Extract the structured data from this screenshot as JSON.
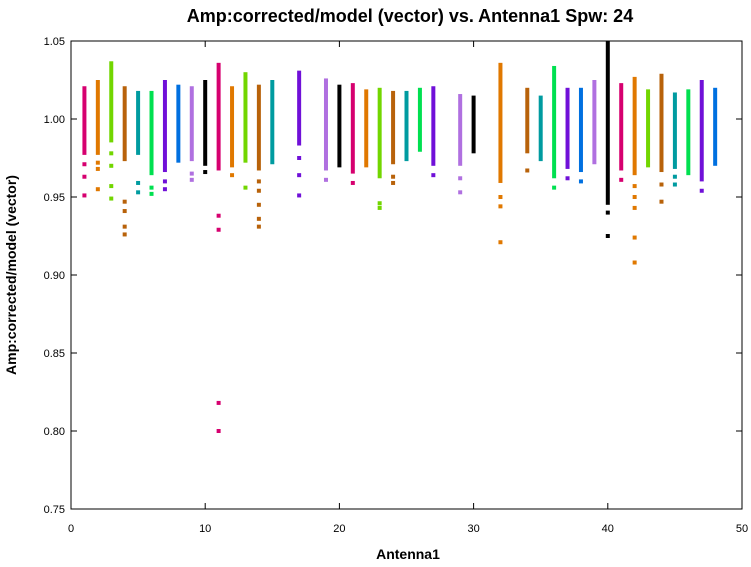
{
  "chart_data": {
    "type": "scatter",
    "title": "Amp:corrected/model (vector) vs. Antenna1 Spw: 24",
    "xlabel": "Antenna1",
    "ylabel": "Amp:corrected/model (vector)",
    "xlim": [
      0,
      50
    ],
    "ylim": [
      0.75,
      1.05
    ],
    "x_ticks": [
      0,
      10,
      20,
      30,
      40,
      50
    ],
    "x_tick_labels": [
      "0",
      "10",
      "20",
      "30",
      "40",
      "50"
    ],
    "y_ticks": [
      0.75,
      0.8,
      0.85,
      0.9,
      0.95,
      1.0,
      1.05
    ],
    "y_tick_labels": [
      "0.75",
      "0.80",
      "0.85",
      "0.90",
      "0.95",
      "1.00",
      "1.05"
    ],
    "grid": false,
    "series": [
      {
        "x": 1,
        "color": "#d6006f",
        "bar": [
          0.977,
          1.021
        ],
        "points": [
          0.971,
          0.963,
          0.951
        ]
      },
      {
        "x": 2,
        "color": "#e07800",
        "bar": [
          0.977,
          1.025
        ],
        "points": [
          0.972,
          0.968,
          0.955
        ]
      },
      {
        "x": 3,
        "color": "#72d600",
        "bar": [
          0.985,
          1.037
        ],
        "points": [
          0.978,
          0.97,
          0.957,
          0.949
        ]
      },
      {
        "x": 4,
        "color": "#b8620a",
        "bar": [
          0.973,
          1.021
        ],
        "points": [
          0.947,
          0.941,
          0.931,
          0.926
        ]
      },
      {
        "x": 5,
        "color": "#009ba0",
        "bar": [
          0.977,
          1.018
        ],
        "points": [
          0.959,
          0.953
        ]
      },
      {
        "x": 6,
        "color": "#00e050",
        "bar": [
          0.964,
          1.018
        ],
        "points": [
          0.956,
          0.952
        ]
      },
      {
        "x": 7,
        "color": "#7010d8",
        "bar": [
          0.966,
          1.025
        ],
        "points": [
          0.96,
          0.955
        ]
      },
      {
        "x": 8,
        "color": "#0070e0",
        "bar": [
          0.972,
          1.022
        ],
        "points": []
      },
      {
        "x": 9,
        "color": "#b070e0",
        "bar": [
          0.973,
          1.021
        ],
        "points": [
          0.965,
          0.961
        ]
      },
      {
        "x": 10,
        "color": "#000000",
        "bar": [
          0.97,
          1.025
        ],
        "points": [
          0.966
        ]
      },
      {
        "x": 11,
        "color": "#d6006f",
        "bar": [
          0.967,
          1.036
        ],
        "points": [
          0.938,
          0.929,
          0.818,
          0.8
        ]
      },
      {
        "x": 12,
        "color": "#e07800",
        "bar": [
          0.969,
          1.021
        ],
        "points": [
          0.964
        ]
      },
      {
        "x": 13,
        "color": "#72d600",
        "bar": [
          0.972,
          1.03
        ],
        "points": [
          0.956
        ]
      },
      {
        "x": 14,
        "color": "#b8620a",
        "bar": [
          0.967,
          1.022
        ],
        "points": [
          0.96,
          0.954,
          0.945,
          0.936,
          0.931
        ]
      },
      {
        "x": 15,
        "color": "#009ba0",
        "bar": [
          0.971,
          1.025
        ],
        "points": []
      },
      {
        "x": 17,
        "color": "#7010d8",
        "bar": [
          0.983,
          1.031
        ],
        "points": [
          0.975,
          0.964,
          0.951
        ]
      },
      {
        "x": 19,
        "color": "#b070e0",
        "bar": [
          0.967,
          1.026
        ],
        "points": [
          0.961
        ]
      },
      {
        "x": 20,
        "color": "#000000",
        "bar": [
          0.969,
          1.022
        ],
        "points": []
      },
      {
        "x": 21,
        "color": "#d6006f",
        "bar": [
          0.965,
          1.023
        ],
        "points": [
          0.959
        ]
      },
      {
        "x": 22,
        "color": "#e07800",
        "bar": [
          0.969,
          1.019
        ],
        "points": []
      },
      {
        "x": 23,
        "color": "#72d600",
        "bar": [
          0.962,
          1.02
        ],
        "points": [
          0.946,
          0.943
        ]
      },
      {
        "x": 24,
        "color": "#b8620a",
        "bar": [
          0.971,
          1.018
        ],
        "points": [
          0.963,
          0.959
        ]
      },
      {
        "x": 25,
        "color": "#009ba0",
        "bar": [
          0.973,
          1.018
        ],
        "points": []
      },
      {
        "x": 26,
        "color": "#00e050",
        "bar": [
          0.979,
          1.02
        ],
        "points": []
      },
      {
        "x": 27,
        "color": "#7010d8",
        "bar": [
          0.97,
          1.021
        ],
        "points": [
          0.964
        ]
      },
      {
        "x": 29,
        "color": "#b070e0",
        "bar": [
          0.97,
          1.016
        ],
        "points": [
          0.962,
          0.953
        ]
      },
      {
        "x": 30,
        "color": "#000000",
        "bar": [
          0.978,
          1.015
        ],
        "points": []
      },
      {
        "x": 32,
        "color": "#e07800",
        "bar": [
          0.959,
          1.036
        ],
        "points": [
          0.95,
          0.944,
          0.921
        ]
      },
      {
        "x": 34,
        "color": "#b8620a",
        "bar": [
          0.978,
          1.02
        ],
        "points": [
          0.967
        ]
      },
      {
        "x": 35,
        "color": "#009ba0",
        "bar": [
          0.973,
          1.015
        ],
        "points": []
      },
      {
        "x": 36,
        "color": "#00e050",
        "bar": [
          0.962,
          1.034
        ],
        "points": [
          0.956
        ]
      },
      {
        "x": 37,
        "color": "#7010d8",
        "bar": [
          0.968,
          1.02
        ],
        "points": [
          0.962
        ]
      },
      {
        "x": 38,
        "color": "#0070e0",
        "bar": [
          0.966,
          1.02
        ],
        "points": [
          0.96
        ]
      },
      {
        "x": 39,
        "color": "#b070e0",
        "bar": [
          0.971,
          1.025
        ],
        "points": []
      },
      {
        "x": 40,
        "color": "#000000",
        "bar": [
          0.945,
          1.05
        ],
        "points": [
          0.94,
          0.925
        ]
      },
      {
        "x": 41,
        "color": "#d6006f",
        "bar": [
          0.967,
          1.023
        ],
        "points": [
          0.961
        ]
      },
      {
        "x": 42,
        "color": "#e07800",
        "bar": [
          0.964,
          1.027
        ],
        "points": [
          0.957,
          0.95,
          0.943,
          0.924,
          0.908
        ]
      },
      {
        "x": 43,
        "color": "#72d600",
        "bar": [
          0.969,
          1.019
        ],
        "points": []
      },
      {
        "x": 44,
        "color": "#b8620a",
        "bar": [
          0.966,
          1.029
        ],
        "points": [
          0.958,
          0.947
        ]
      },
      {
        "x": 45,
        "color": "#009ba0",
        "bar": [
          0.968,
          1.017
        ],
        "points": [
          0.963,
          0.958
        ]
      },
      {
        "x": 46,
        "color": "#00e050",
        "bar": [
          0.964,
          1.019
        ],
        "points": []
      },
      {
        "x": 47,
        "color": "#7010d8",
        "bar": [
          0.96,
          1.025
        ],
        "points": [
          0.954
        ]
      },
      {
        "x": 48,
        "color": "#0070e0",
        "bar": [
          0.97,
          1.02
        ],
        "points": []
      }
    ]
  }
}
